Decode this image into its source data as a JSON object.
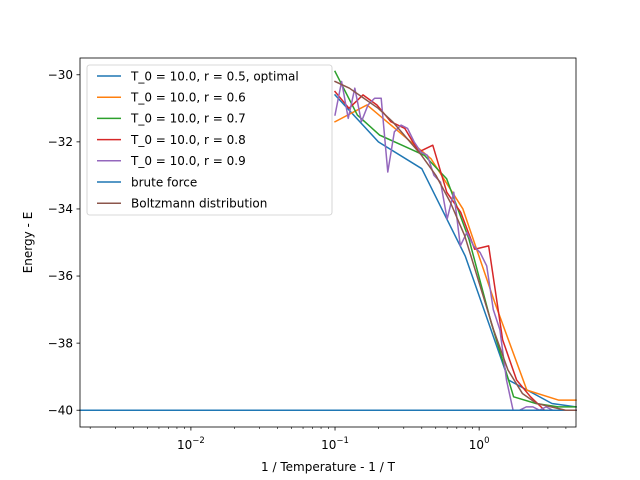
{
  "chart_data": {
    "type": "line",
    "title": "",
    "xlabel": "1 / Temperature - 1 / T",
    "ylabel": "Energy - E",
    "xscale": "log",
    "xlim": [
      0.0017,
      4.7
    ],
    "ylim": [
      -40.5,
      -29.5
    ],
    "x_ticks": [
      {
        "value": 0.01,
        "base": "10",
        "exp": "−2"
      },
      {
        "value": 0.1,
        "base": "10",
        "exp": "−1"
      },
      {
        "value": 1,
        "base": "10",
        "exp": "0"
      }
    ],
    "y_ticks": [
      {
        "value": -30,
        "label": "−30"
      },
      {
        "value": -32,
        "label": "−32"
      },
      {
        "value": -34,
        "label": "−34"
      },
      {
        "value": -36,
        "label": "−36"
      },
      {
        "value": -38,
        "label": "−38"
      },
      {
        "value": -40,
        "label": "−40"
      }
    ],
    "grid": false,
    "legend_position": "upper left",
    "series": [
      {
        "name": "T_0 = 10.0, r = 0.5, optimal",
        "color": "#1f77b4",
        "x": [
          0.1,
          0.2,
          0.4,
          0.8,
          1.6,
          3.2,
          4.7
        ],
        "y": [
          -30.6,
          -32.0,
          -32.8,
          -35.4,
          -39.1,
          -39.8,
          -39.9
        ]
      },
      {
        "name": "T_0 = 10.0, r = 0.6",
        "color": "#ff7f0e",
        "x": [
          0.1,
          0.1667,
          0.2778,
          0.463,
          0.7716,
          1.286,
          2.143,
          3.572,
          4.7
        ],
        "y": [
          -31.4,
          -30.9,
          -31.7,
          -32.5,
          -34.0,
          -36.8,
          -39.4,
          -39.7,
          -39.7
        ]
      },
      {
        "name": "T_0 = 10.0, r = 0.7",
        "color": "#2ca02c",
        "x": [
          0.1,
          0.1429,
          0.2041,
          0.2915,
          0.4165,
          0.595,
          0.85,
          1.2143,
          1.7347,
          2.4781,
          3.5401,
          4.7
        ],
        "y": [
          -29.9,
          -31.2,
          -31.8,
          -32.1,
          -32.4,
          -33.1,
          -34.9,
          -37.4,
          -39.6,
          -39.8,
          -39.9,
          -39.9
        ]
      },
      {
        "name": "T_0 = 10.0, r = 0.8",
        "color": "#d62728",
        "x": [
          0.1,
          0.125,
          0.1563,
          0.1953,
          0.2441,
          0.3052,
          0.3815,
          0.4768,
          0.596,
          0.745,
          0.9313,
          1.1642,
          1.4552,
          1.819,
          2.2737,
          2.8422,
          3.5527,
          4.7
        ],
        "y": [
          -30.5,
          -31.0,
          -30.6,
          -30.9,
          -31.4,
          -31.6,
          -32.3,
          -32.1,
          -33.5,
          -34.1,
          -35.2,
          -35.1,
          -37.9,
          -39.1,
          -39.6,
          -40.0,
          -40.0,
          -40.0
        ]
      },
      {
        "name": "T_0 = 10.0, r = 0.9",
        "color": "#9467bd",
        "x": [
          0.1,
          0.1111,
          0.1235,
          0.1372,
          0.1524,
          0.1694,
          0.1882,
          0.2091,
          0.2323,
          0.2581,
          0.2868,
          0.3187,
          0.3541,
          0.3935,
          0.4372,
          0.4858,
          0.5397,
          0.5997,
          0.6664,
          0.7404,
          0.8227,
          0.9141,
          1.0157,
          1.1285,
          1.2539,
          1.3933,
          1.5481,
          1.7201,
          1.9112,
          2.1236,
          2.3595,
          2.6217,
          2.913,
          3.2367,
          3.5963,
          3.9959,
          4.44,
          4.7
        ],
        "y": [
          -31.2,
          -30.2,
          -31.3,
          -30.4,
          -31.4,
          -30.9,
          -30.7,
          -30.7,
          -32.9,
          -31.7,
          -31.5,
          -31.6,
          -32.0,
          -32.3,
          -32.4,
          -33.0,
          -33.2,
          -34.3,
          -33.5,
          -35.1,
          -34.7,
          -35.1,
          -35.3,
          -35.7,
          -37.0,
          -37.6,
          -39.1,
          -40.0,
          -40.0,
          -39.9,
          -39.9,
          -40.0,
          -39.9,
          -40.0,
          -40.0,
          -40.0,
          -40.0,
          -40.0
        ]
      },
      {
        "name": "brute force",
        "color": "#1f77b4",
        "x": [
          0.0017,
          4.7
        ],
        "y": [
          -40.0,
          -40.0
        ]
      },
      {
        "name": "Boltzmann distribution",
        "color": "#8c564b",
        "x": [
          0.1,
          0.1259,
          0.1585,
          0.1995,
          0.2512,
          0.3162,
          0.3981,
          0.5012,
          0.631,
          0.7943,
          1.0,
          1.2589,
          1.5849,
          1.9953,
          2.5119,
          3.1623,
          3.9811,
          4.7
        ],
        "y": [
          -30.2,
          -30.4,
          -30.7,
          -31.0,
          -31.4,
          -31.9,
          -32.4,
          -33.0,
          -33.8,
          -34.8,
          -36.2,
          -37.6,
          -38.8,
          -39.5,
          -39.8,
          -39.9,
          -40.0,
          -40.0
        ]
      }
    ]
  }
}
